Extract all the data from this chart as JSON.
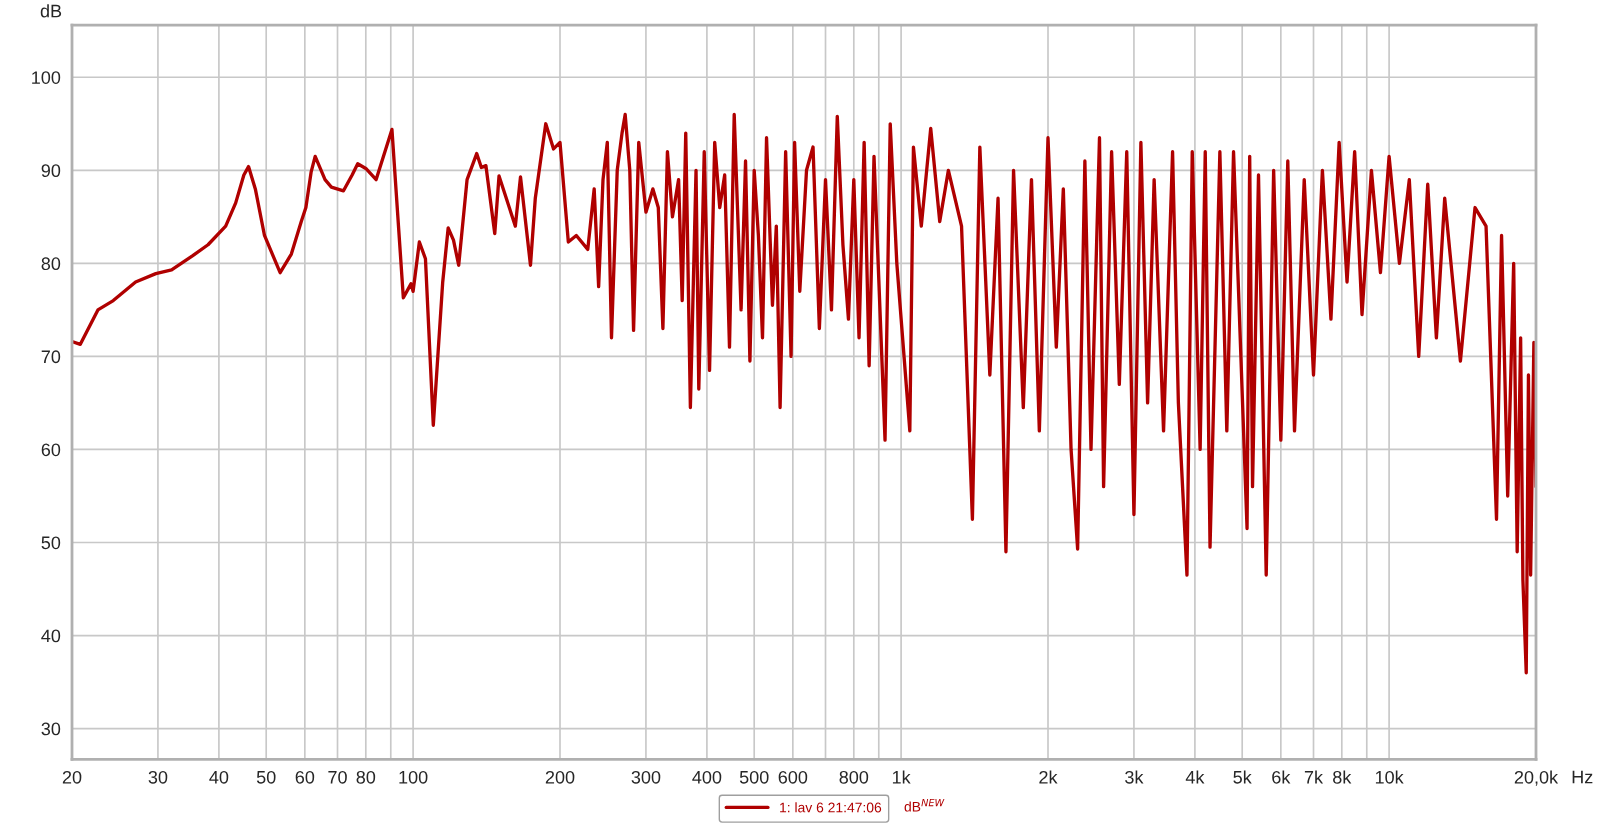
{
  "chart_data": {
    "type": "line",
    "xlabel": "Hz",
    "ylabel": "dB",
    "log": "x",
    "xlim": [
      20,
      20000
    ],
    "xticks": [
      20,
      30,
      40,
      50,
      60,
      70,
      80,
      {
        "value": 90,
        "label": null
      },
      100,
      200,
      300,
      400,
      500,
      600,
      {
        "value": 700,
        "label": null
      },
      800,
      {
        "value": 900,
        "label": null
      },
      {
        "value": 1000,
        "label": "1k"
      },
      {
        "value": 2000,
        "label": "2k"
      },
      {
        "value": 3000,
        "label": "3k"
      },
      {
        "value": 4000,
        "label": "4k"
      },
      {
        "value": 5000,
        "label": "5k"
      },
      {
        "value": 6000,
        "label": "6k"
      },
      {
        "value": 7000,
        "label": "7k"
      },
      {
        "value": 8000,
        "label": "8k"
      },
      {
        "value": 9000,
        "label": null
      },
      {
        "value": 10000,
        "label": "10k"
      },
      {
        "value": 20000,
        "label": "20,0k"
      }
    ],
    "ylim": [
      26.7,
      105.6
    ],
    "yticks": [
      30,
      40,
      50,
      60,
      70,
      80,
      90,
      100
    ],
    "grid": true,
    "legend": "bottom",
    "annotations": [
      "dB$^{NEW}$"
    ],
    "series": [
      {
        "name": "1: lav 6 21:47:06",
        "color": "#b00000",
        "x": [
          20,
          20.8,
          22.6,
          24.3,
          27,
          29.7,
          32,
          35.3,
          38,
          41.3,
          43.3,
          45,
          46,
          47.5,
          49.6,
          53.4,
          56.3,
          59,
          60.3,
          61.8,
          63,
          66,
          68,
          72,
          75,
          77,
          80,
          84,
          90.5,
          95.5,
          99,
          100,
          103,
          106,
          110,
          115,
          118,
          121,
          124,
          129,
          135,
          138,
          141,
          147,
          150,
          162,
          166,
          174,
          178,
          187,
          194,
          200,
          208,
          216,
          228,
          235,
          240,
          245,
          250,
          255,
          262,
          268,
          272,
          278,
          283,
          290,
          300,
          310,
          318,
          325,
          332,
          340,
          350,
          356,
          362,
          370,
          380,
          385,
          395,
          405,
          415,
          425,
          435,
          445,
          455,
          470,
          480,
          490,
          500,
          510,
          520,
          530,
          545,
          555,
          565,
          580,
          595,
          605,
          620,
          640,
          660,
          680,
          700,
          720,
          740,
          760,
          780,
          800,
          820,
          840,
          860,
          880,
          927,
          950,
          980,
          1042,
          1060,
          1100,
          1150,
          1200,
          1250,
          1330,
          1400,
          1450,
          1520,
          1580,
          1640,
          1700,
          1780,
          1850,
          1920,
          2000,
          2080,
          2150,
          2230,
          2300,
          2380,
          2450,
          2550,
          2600,
          2700,
          2800,
          2900,
          3000,
          3100,
          3200,
          3300,
          3450,
          3600,
          3700,
          3853,
          3950,
          4100,
          4200,
          4296,
          4500,
          4650,
          4800,
          5116,
          5180,
          5250,
          5400,
          5600,
          5800,
          6000,
          6200,
          6400,
          6700,
          7000,
          7300,
          7600,
          7900,
          8200,
          8500,
          8800,
          9200,
          9600,
          10000,
          10500,
          11000,
          11500,
          12000,
          12500,
          13000,
          14000,
          15000,
          15800,
          16600,
          17000,
          17500,
          18000,
          18300,
          18600,
          18800,
          19100,
          19300,
          19500,
          19800,
          20000
        ],
        "values": [
          71.6,
          71.3,
          75,
          76,
          78,
          78.9,
          79.3,
          80.8,
          82,
          84,
          86.5,
          89.5,
          90.4,
          88,
          83,
          79,
          81,
          84.5,
          86,
          89.8,
          91.5,
          89,
          88.2,
          87.8,
          89.5,
          90.7,
          90.2,
          89,
          94.4,
          76.3,
          77.8,
          77,
          82.3,
          80.5,
          62.6,
          78,
          83.8,
          82.5,
          79.8,
          89,
          91.8,
          90.3,
          90.5,
          83.2,
          89.4,
          84,
          89.3,
          79.8,
          87,
          95,
          92.3,
          93,
          82.3,
          83,
          81.5,
          88,
          77.5,
          89,
          93,
          72,
          90,
          94,
          96,
          90,
          72.8,
          93,
          85.5,
          88,
          86,
          73,
          92,
          85,
          89,
          76,
          94,
          64.5,
          90,
          66.5,
          92,
          68.5,
          93,
          86,
          89.5,
          71,
          96,
          75,
          91,
          69.5,
          90,
          83,
          72,
          93.5,
          75.5,
          84,
          64.5,
          92,
          70,
          93,
          77,
          90,
          92.5,
          73,
          89,
          75,
          95.8,
          82,
          74,
          89,
          72,
          93,
          69,
          91.5,
          61,
          95,
          80,
          62,
          92.5,
          84,
          94.5,
          84.5,
          90,
          84,
          52.5,
          92.5,
          68,
          87,
          49,
          90,
          64.5,
          89,
          62,
          93.5,
          71,
          88,
          60,
          49.3,
          91,
          60,
          93.5,
          56,
          92,
          67,
          92,
          53,
          93,
          65,
          89,
          62,
          92,
          65,
          46.5,
          92,
          60,
          92,
          49.5,
          92,
          62,
          92,
          51.5,
          91.5,
          56,
          89.5,
          46.5,
          90,
          61,
          91,
          62,
          89,
          68,
          90,
          74,
          93,
          78,
          92,
          74.5,
          90,
          79,
          91.5,
          80,
          89,
          70,
          88.5,
          72,
          87,
          69.5,
          86,
          84,
          52.5,
          83,
          55,
          80,
          49,
          72,
          46,
          36,
          68,
          46.5,
          71.5,
          56
        ]
      }
    ]
  }
}
